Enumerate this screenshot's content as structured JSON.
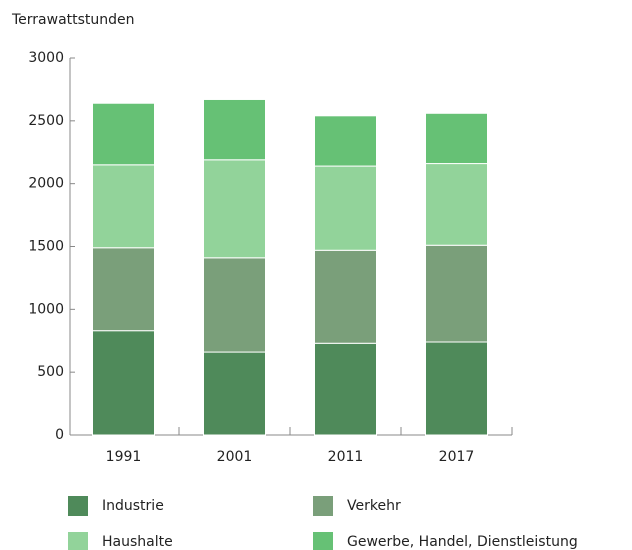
{
  "chart_data": {
    "type": "stacked_bar",
    "y_axis_label": "Terrawattstunden",
    "categories": [
      "1991",
      "2001",
      "2011",
      "2017"
    ],
    "series": [
      {
        "name": "Industrie",
        "color": "#4f8a5a",
        "values": [
          830,
          660,
          730,
          740
        ]
      },
      {
        "name": "Verkehr",
        "color": "#7a9f7a",
        "values": [
          660,
          750,
          740,
          770
        ]
      },
      {
        "name": "Haushalte",
        "color": "#92d39a",
        "values": [
          660,
          780,
          670,
          650
        ]
      },
      {
        "name": "Gewerbe, Handel, Dienstleistung",
        "color": "#66c175",
        "values": [
          490,
          480,
          400,
          400
        ]
      }
    ],
    "ylim": [
      0,
      3000
    ],
    "yticks": [
      0,
      500,
      1000,
      1500,
      2000,
      2500,
      3000
    ],
    "grid": false
  }
}
